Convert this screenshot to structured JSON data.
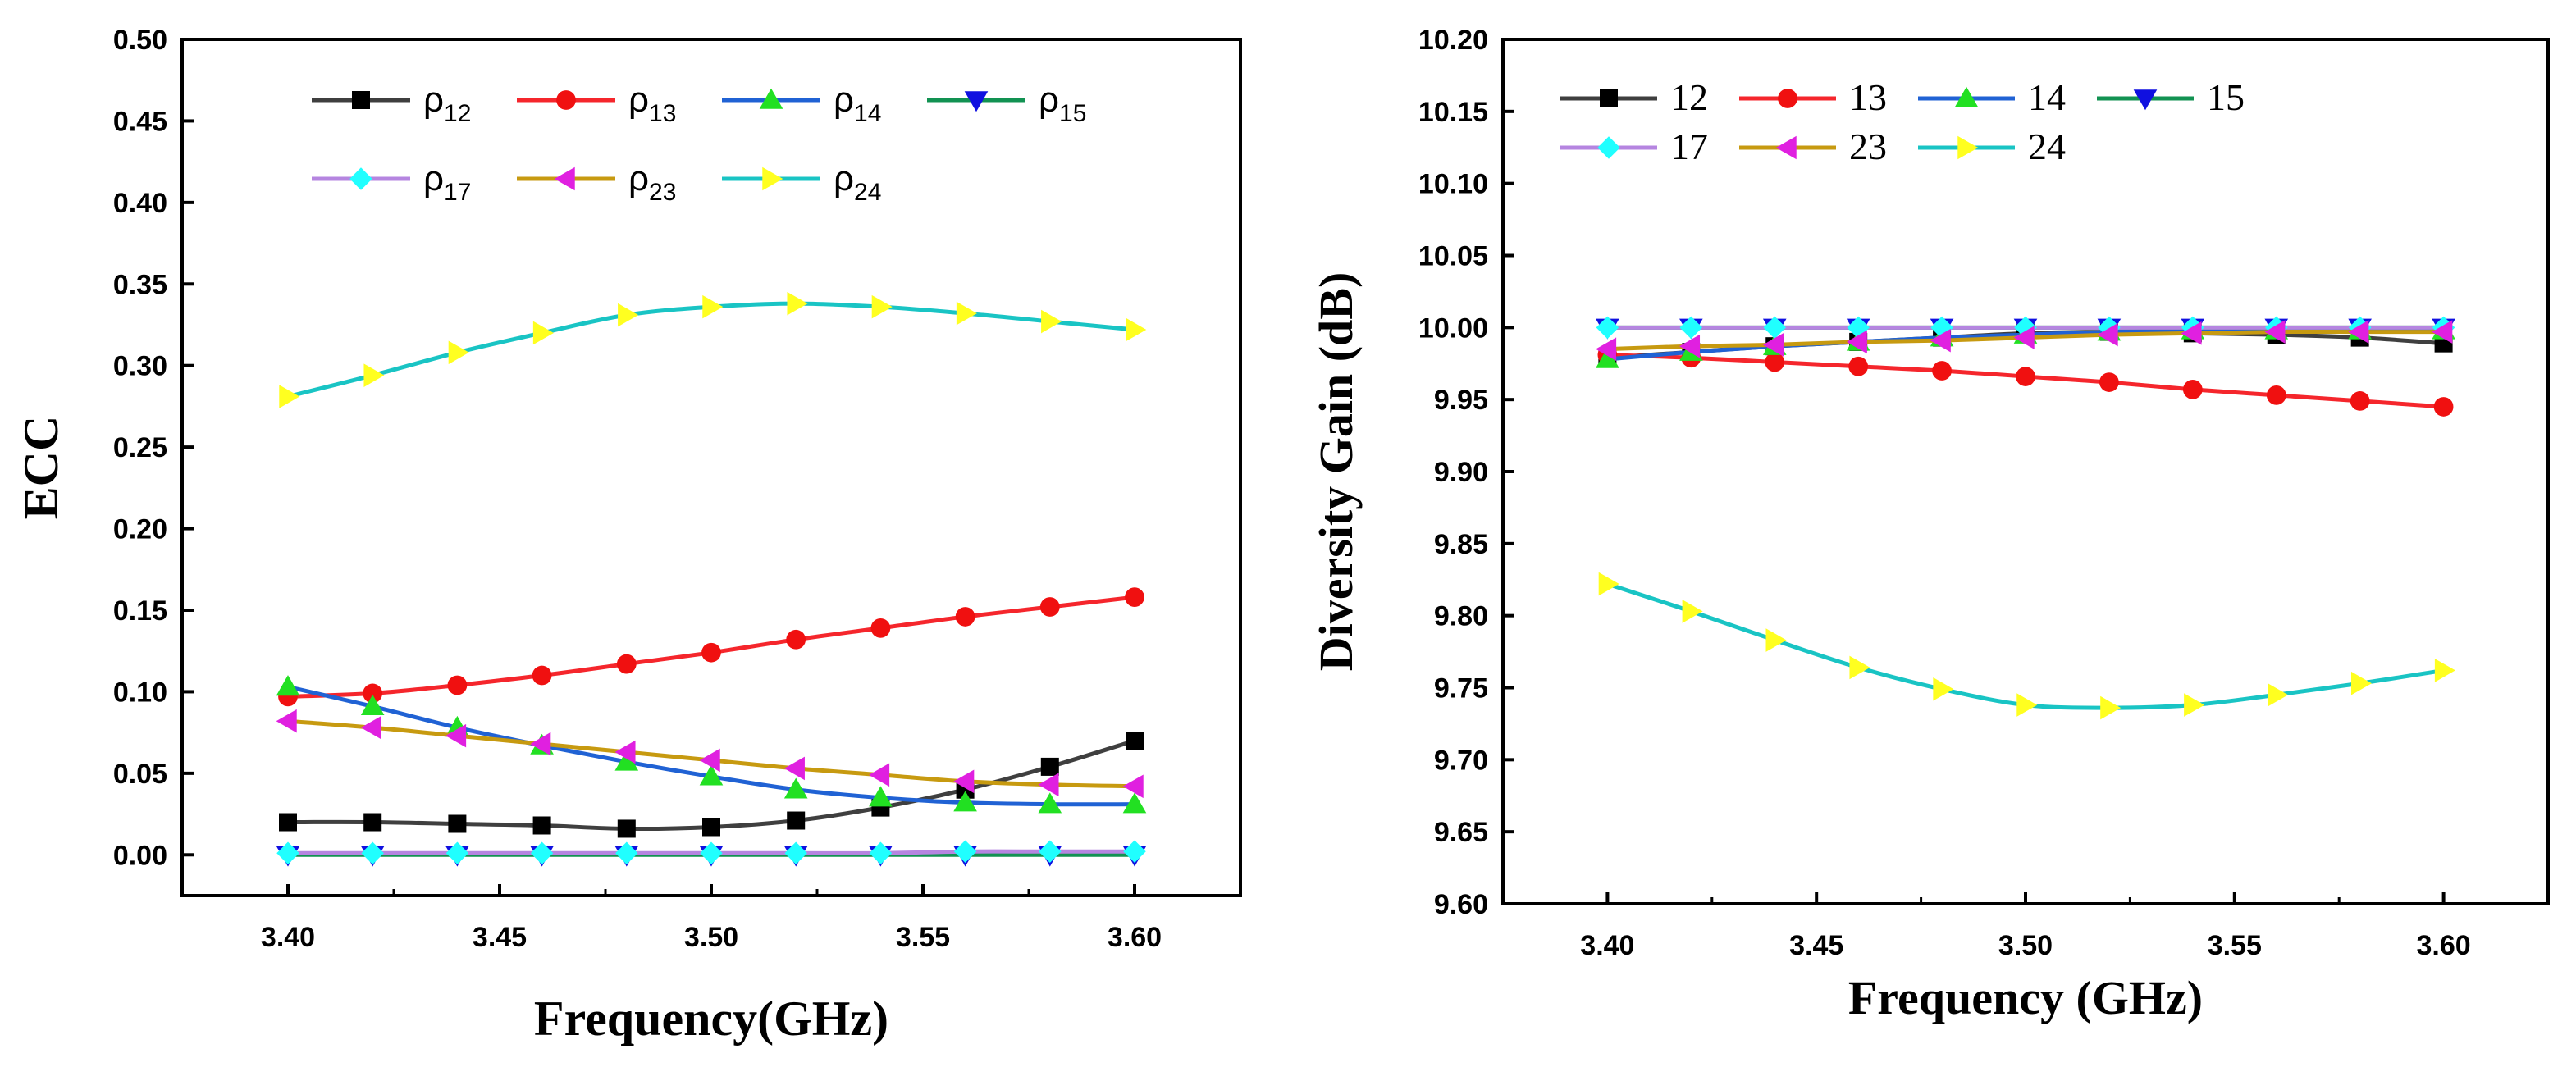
{
  "chart_data": [
    {
      "type": "line",
      "xlabel": "Frequency(GHz)",
      "ylabel": "ECC",
      "xlim": [
        3.375,
        3.625
      ],
      "ylim": [
        -0.025,
        0.5
      ],
      "xticks": [
        "3.40",
        "3.45",
        "3.50",
        "3.55",
        "3.60"
      ],
      "yticks": [
        "0.00",
        "0.05",
        "0.10",
        "0.15",
        "0.20",
        "0.25",
        "0.30",
        "0.35",
        "0.40",
        "0.45",
        "0.50"
      ],
      "legend_location": "top",
      "legend_symbol": "ρ",
      "x": [
        3.4,
        3.42,
        3.44,
        3.46,
        3.48,
        3.5,
        3.52,
        3.54,
        3.56,
        3.58,
        3.6
      ],
      "series": [
        {
          "name": "12",
          "color": "#3f3f3f",
          "marker": "square",
          "values": [
            0.02,
            0.02,
            0.019,
            0.018,
            0.016,
            0.017,
            0.021,
            0.029,
            0.04,
            0.054,
            0.07
          ]
        },
        {
          "name": "13",
          "color": "#f5262c",
          "marker": "circle",
          "values": [
            0.097,
            0.099,
            0.104,
            0.11,
            0.117,
            0.124,
            0.132,
            0.139,
            0.146,
            0.152,
            0.158
          ]
        },
        {
          "name": "14",
          "color": "#2062d4",
          "marker": "triangle-up",
          "values": [
            0.103,
            0.091,
            0.078,
            0.067,
            0.057,
            0.048,
            0.04,
            0.035,
            0.032,
            0.031,
            0.031
          ]
        },
        {
          "name": "15",
          "color": "#129252",
          "marker": "triangle-down",
          "values": [
            0.0,
            0.0,
            0.0,
            0.0,
            0.0,
            0.0,
            0.0,
            0.0,
            0.0,
            0.0,
            0.0
          ]
        },
        {
          "name": "17",
          "color": "#b585e0",
          "marker": "diamond",
          "values": [
            0.001,
            0.001,
            0.001,
            0.001,
            0.001,
            0.001,
            0.001,
            0.001,
            0.002,
            0.002,
            0.002
          ]
        },
        {
          "name": "23",
          "color": "#c79a10",
          "marker": "triangle-left",
          "values": [
            0.082,
            0.078,
            0.073,
            0.068,
            0.063,
            0.058,
            0.053,
            0.049,
            0.045,
            0.043,
            0.042
          ]
        },
        {
          "name": "24",
          "color": "#19c4c4",
          "marker": "triangle-right",
          "values": [
            0.281,
            0.294,
            0.308,
            0.32,
            0.331,
            0.336,
            0.338,
            0.336,
            0.332,
            0.327,
            0.322
          ]
        }
      ]
    },
    {
      "type": "line",
      "xlabel": "Frequency (GHz)",
      "ylabel": "Diversity Gain (dB)",
      "xlim": [
        3.375,
        3.625
      ],
      "ylim": [
        9.6,
        10.2
      ],
      "xticks": [
        "3.40",
        "3.45",
        "3.50",
        "3.55",
        "3.60"
      ],
      "yticks": [
        "9.60",
        "9.65",
        "9.70",
        "9.75",
        "9.80",
        "9.85",
        "9.90",
        "9.95",
        "10.00",
        "10.05",
        "10.10",
        "10.15",
        "10.20"
      ],
      "legend_location": "top-left",
      "x": [
        3.4,
        3.42,
        3.44,
        3.46,
        3.48,
        3.5,
        3.52,
        3.54,
        3.56,
        3.58,
        3.6
      ],
      "series": [
        {
          "name": "12",
          "color": "#3f3f3f",
          "marker": "square",
          "values": [
            9.979,
            9.983,
            9.987,
            9.99,
            9.993,
            9.996,
            9.997,
            9.996,
            9.995,
            9.993,
            9.989
          ]
        },
        {
          "name": "13",
          "color": "#f5262c",
          "marker": "circle",
          "values": [
            9.981,
            9.979,
            9.976,
            9.973,
            9.97,
            9.966,
            9.962,
            9.957,
            9.953,
            9.949,
            9.945
          ]
        },
        {
          "name": "14",
          "color": "#2062d4",
          "marker": "triangle-up",
          "values": [
            9.978,
            9.983,
            9.987,
            9.99,
            9.993,
            9.995,
            9.997,
            9.998,
            9.998,
            9.998,
            9.998
          ]
        },
        {
          "name": "15",
          "color": "#129252",
          "marker": "triangle-down",
          "values": [
            10.0,
            10.0,
            10.0,
            10.0,
            10.0,
            10.0,
            10.0,
            10.0,
            10.0,
            10.0,
            10.0
          ]
        },
        {
          "name": "17",
          "color": "#b585e0",
          "marker": "diamond",
          "values": [
            10.0,
            10.0,
            10.0,
            10.0,
            10.0,
            10.0,
            10.0,
            10.0,
            10.0,
            10.0,
            10.0
          ]
        },
        {
          "name": "23",
          "color": "#c79a10",
          "marker": "triangle-left",
          "values": [
            9.985,
            9.987,
            9.988,
            9.99,
            9.991,
            9.993,
            9.995,
            9.996,
            9.997,
            9.997,
            9.997
          ]
        },
        {
          "name": "24",
          "color": "#19c4c4",
          "marker": "triangle-right",
          "values": [
            9.822,
            9.803,
            9.783,
            9.764,
            9.749,
            9.738,
            9.736,
            9.738,
            9.745,
            9.753,
            9.762
          ]
        }
      ]
    }
  ]
}
